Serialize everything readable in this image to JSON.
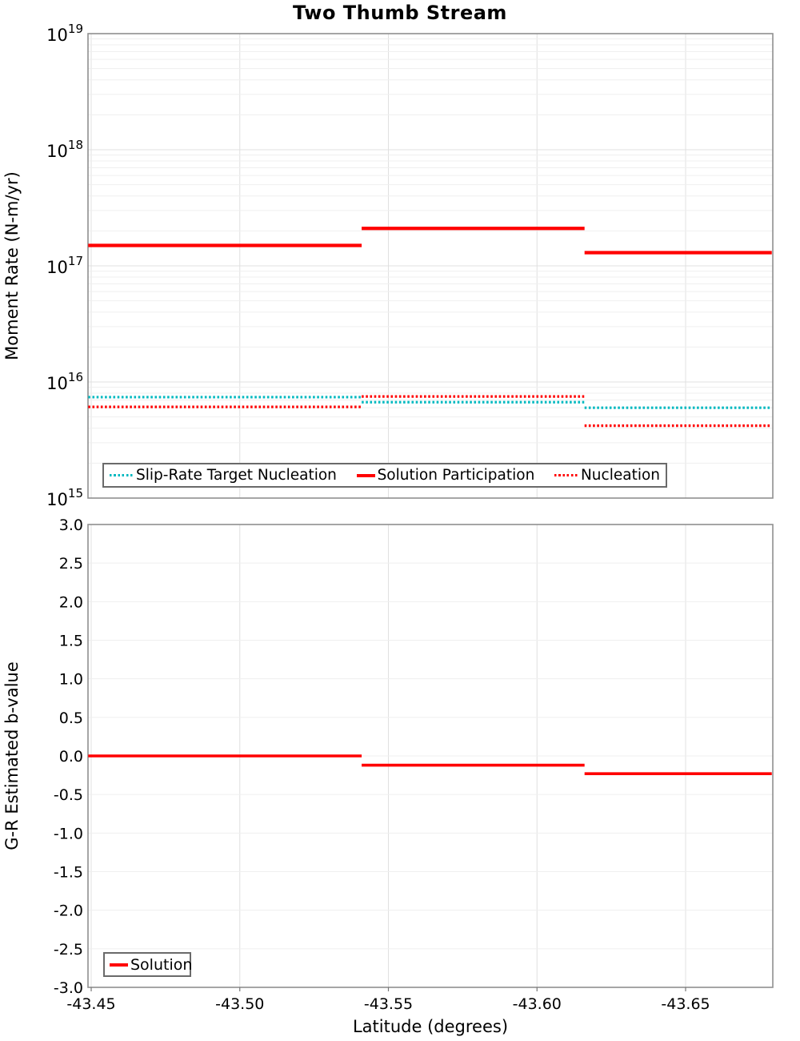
{
  "title": "Two Thumb Stream",
  "colors": {
    "solution_red": "#ff0000",
    "target_teal": "#00b9c0",
    "grid_minor": "#efefef",
    "grid_major": "#e0e0e0",
    "panel_border": "#8f8f8f",
    "legend_border": "#6a6a6a"
  },
  "top_panel": {
    "ylabel": "Moment Rate (N-m/yr)",
    "y_tick_exponents": [
      19,
      18,
      17,
      16,
      15
    ],
    "legend": {
      "items": [
        {
          "label": "Slip-Rate Target Nucleation",
          "style": "dotted",
          "color": "#00b9c0"
        },
        {
          "label": "Solution Participation",
          "style": "solid",
          "color": "#ff0000"
        },
        {
          "label": "Nucleation",
          "style": "dotted",
          "color": "#ff0000"
        }
      ]
    }
  },
  "bottom_panel": {
    "ylabel": "G-R Estimated b-value",
    "xlabel": "Latitude (degrees)",
    "y_tick_labels": [
      "3.0",
      "2.5",
      "2.0",
      "1.5",
      "1.0",
      "0.5",
      "0.0",
      "-0.5",
      "-1.0",
      "-1.5",
      "-2.0",
      "-2.5",
      "-3.0"
    ],
    "x_tick_labels": [
      "-43.45",
      "-43.50",
      "-43.55",
      "-43.60",
      "-43.65"
    ],
    "legend": {
      "items": [
        {
          "label": "Solution",
          "style": "solid",
          "color": "#ff0000"
        }
      ]
    }
  },
  "chart_data": [
    {
      "type": "line",
      "panel": "top",
      "title": "Two Thumb Stream",
      "xlabel": "",
      "ylabel": "Moment Rate (N-m/yr)",
      "yscale": "log",
      "ylim": [
        1000000000000000.0,
        1e+19
      ],
      "xlim": [
        -43.449,
        -43.679
      ],
      "x_tick_values": [
        -43.45,
        -43.5,
        -43.55,
        -43.6,
        -43.65
      ],
      "grid": true,
      "legend_position": "lower-left",
      "series": [
        {
          "name": "Slip-Rate Target Nucleation",
          "line": "dotted",
          "color": "#00b9c0",
          "steps": [
            {
              "from": -43.449,
              "to": -43.541,
              "value": 7400000000000000.0
            },
            {
              "from": -43.541,
              "to": -43.616,
              "value": 6700000000000000.0
            },
            {
              "from": -43.616,
              "to": -43.679,
              "value": 6000000000000000.0
            }
          ]
        },
        {
          "name": "Solution Participation",
          "line": "solid",
          "color": "#ff0000",
          "steps": [
            {
              "from": -43.449,
              "to": -43.541,
              "value": 1.5e+17
            },
            {
              "from": -43.541,
              "to": -43.616,
              "value": 2.1e+17
            },
            {
              "from": -43.616,
              "to": -43.679,
              "value": 1.3e+17
            }
          ]
        },
        {
          "name": "Nucleation",
          "line": "dotted",
          "color": "#ff0000",
          "steps": [
            {
              "from": -43.449,
              "to": -43.541,
              "value": 6100000000000000.0
            },
            {
              "from": -43.541,
              "to": -43.616,
              "value": 7500000000000000.0
            },
            {
              "from": -43.616,
              "to": -43.679,
              "value": 4200000000000000.0
            }
          ]
        }
      ]
    },
    {
      "type": "line",
      "panel": "bottom",
      "xlabel": "Latitude (degrees)",
      "ylabel": "G-R Estimated b-value",
      "yscale": "linear",
      "ylim": [
        -3.0,
        3.0
      ],
      "y_tick_step": 0.5,
      "xlim": [
        -43.449,
        -43.679
      ],
      "x_tick_values": [
        -43.45,
        -43.5,
        -43.55,
        -43.6,
        -43.65
      ],
      "grid": true,
      "legend_position": "lower-left",
      "series": [
        {
          "name": "Solution",
          "line": "solid",
          "color": "#ff0000",
          "steps": [
            {
              "from": -43.449,
              "to": -43.541,
              "value": 0.0
            },
            {
              "from": -43.541,
              "to": -43.616,
              "value": -0.12
            },
            {
              "from": -43.616,
              "to": -43.679,
              "value": -0.23
            }
          ]
        }
      ]
    }
  ]
}
